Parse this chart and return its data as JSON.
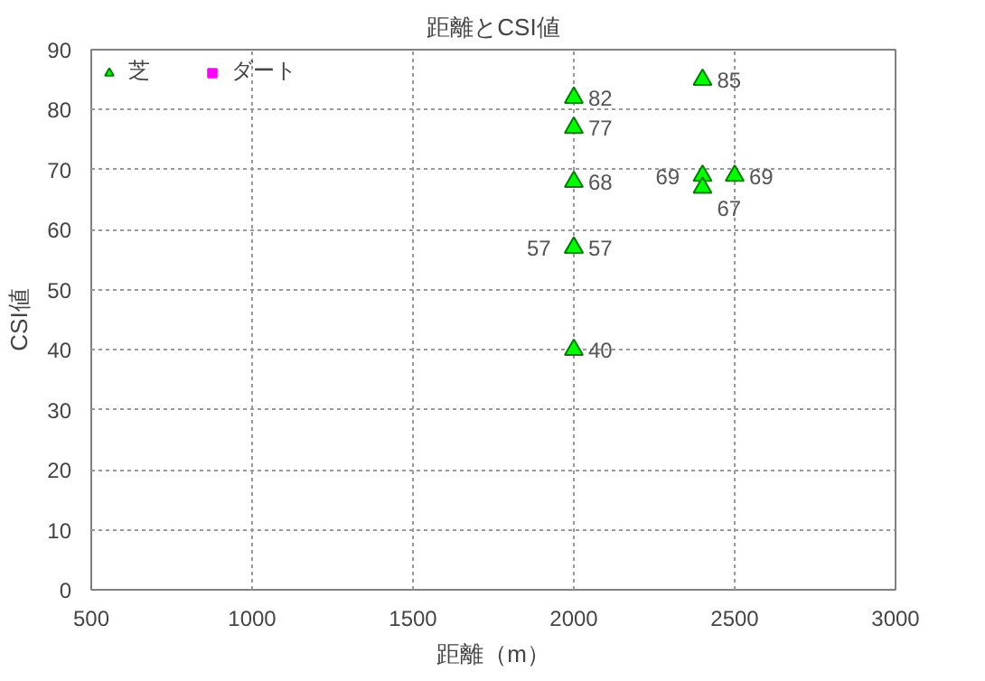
{
  "chart_data": {
    "type": "scatter",
    "title": "距離とCSI値",
    "xlabel": "距離（m）",
    "ylabel": "CSI値",
    "xlim": [
      500,
      3000
    ],
    "xticks": [
      500,
      1000,
      1500,
      2000,
      2500,
      3000
    ],
    "ylim": [
      0,
      90
    ],
    "yticks": [
      0,
      10,
      20,
      30,
      40,
      50,
      60,
      70,
      80,
      90
    ],
    "series": [
      {
        "name": "芝",
        "color": "#00ff00",
        "marker": "triangle",
        "x": [
          2000,
          2000,
          2000,
          2000,
          2000,
          2000,
          2400,
          2400,
          2400,
          2500
        ],
        "values": [
          82,
          77,
          68,
          57,
          57,
          40,
          85,
          69,
          67,
          69
        ]
      },
      {
        "name": "ダート",
        "color": "#ff00ff",
        "marker": "square"
      }
    ],
    "data_labels": true,
    "grid": true,
    "legend": "top left"
  }
}
